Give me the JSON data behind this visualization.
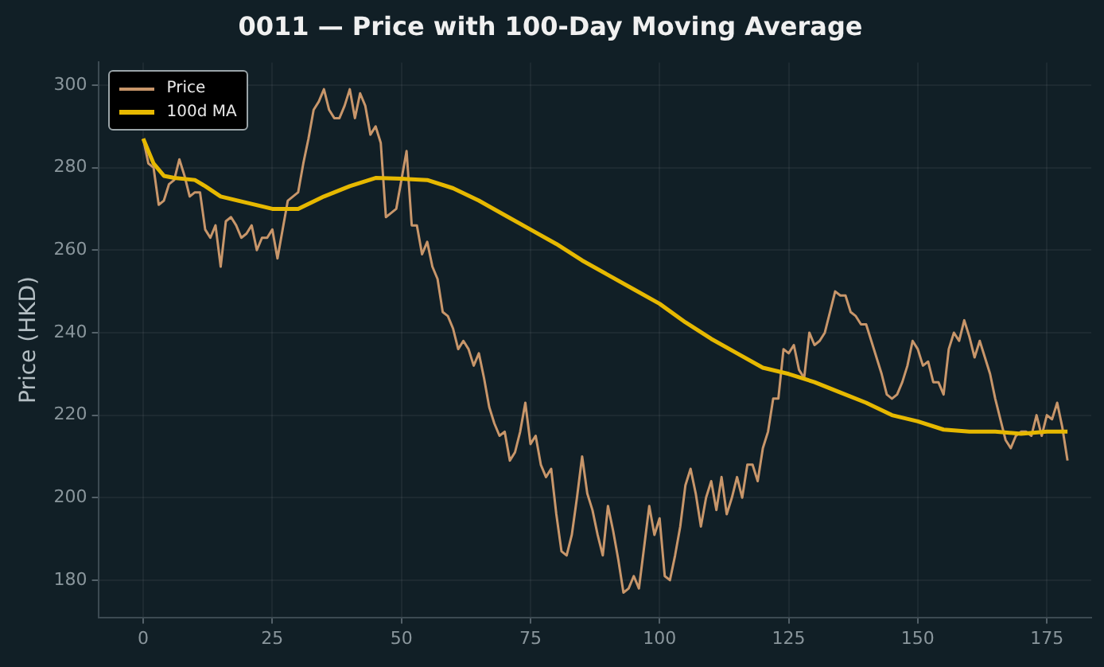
{
  "chart_data": {
    "type": "line",
    "title": "0011 — Price with 100-Day Moving Average",
    "ylabel": "Price (HKD)",
    "xlim": [
      -8.7,
      183.6
    ],
    "xticks": [
      0,
      25,
      50,
      75,
      100,
      125,
      150,
      175
    ],
    "ylim": [
      171,
      305.5
    ],
    "yticks": [
      180,
      200,
      220,
      240,
      260,
      280,
      300
    ],
    "grid": true,
    "legend": "top left",
    "marker": "none",
    "line_style": "solid",
    "series": [
      {
        "name": "Price",
        "color": "#c8966a",
        "x": [
          0,
          1,
          2,
          3,
          4,
          5,
          6,
          7,
          8,
          9,
          10,
          11,
          12,
          13,
          14,
          15,
          16,
          17,
          18,
          19,
          20,
          21,
          22,
          23,
          24,
          25,
          26,
          27,
          28,
          29,
          30,
          31,
          32,
          33,
          34,
          35,
          36,
          37,
          38,
          39,
          40,
          41,
          42,
          43,
          44,
          45,
          46,
          47,
          48,
          49,
          50,
          51,
          52,
          53,
          54,
          55,
          56,
          57,
          58,
          59,
          60,
          61,
          62,
          63,
          64,
          65,
          66,
          67,
          68,
          69,
          70,
          71,
          72,
          73,
          74,
          75,
          76,
          77,
          78,
          79,
          80,
          81,
          82,
          83,
          84,
          85,
          86,
          87,
          88,
          89,
          90,
          91,
          92,
          93,
          94,
          95,
          96,
          97,
          98,
          99,
          100,
          101,
          102,
          103,
          104,
          105,
          106,
          107,
          108,
          109,
          110,
          111,
          112,
          113,
          114,
          115,
          116,
          117,
          118,
          119,
          120,
          121,
          122,
          123,
          124,
          125,
          126,
          127,
          128,
          129,
          130,
          131,
          132,
          133,
          134,
          135,
          136,
          137,
          138,
          139,
          140,
          141,
          142,
          143,
          144,
          145,
          146,
          147,
          148,
          149,
          150,
          151,
          152,
          153,
          154,
          155,
          156,
          157,
          158,
          159,
          160,
          161,
          162,
          163,
          164,
          165,
          166,
          167,
          168,
          169,
          170,
          171,
          172,
          173,
          174,
          175,
          176,
          177,
          178,
          179
        ],
        "values": [
          287,
          281,
          280,
          271,
          272,
          276,
          277,
          282,
          278,
          273,
          274,
          274,
          265,
          263,
          266,
          256,
          267,
          268,
          266,
          263,
          264,
          266,
          260,
          263,
          263,
          265,
          258,
          265,
          272,
          273,
          274,
          281,
          287,
          294,
          296,
          299,
          294,
          292,
          292,
          295,
          299,
          292,
          298,
          295,
          288,
          290,
          286,
          268,
          269,
          270,
          277,
          284,
          266,
          266,
          259,
          262,
          256,
          253,
          245,
          244,
          241,
          236,
          238,
          236,
          232,
          235,
          229,
          222,
          218,
          215,
          216,
          209,
          211,
          216,
          223,
          213,
          215,
          208,
          205,
          207,
          196,
          187,
          186,
          191,
          200,
          210,
          201,
          197,
          191,
          186,
          198,
          192,
          185,
          177,
          178,
          181,
          178,
          188,
          198,
          191,
          195,
          181,
          180,
          186,
          193,
          203,
          207,
          201,
          193,
          200,
          204,
          197,
          205,
          196,
          200,
          205,
          200,
          208,
          208,
          204,
          212,
          216,
          224,
          224,
          236,
          235,
          237,
          231,
          229,
          240,
          237,
          238,
          240,
          245,
          250,
          249,
          249,
          245,
          244,
          242,
          242,
          238,
          234,
          230,
          225,
          224,
          225,
          228,
          232,
          238,
          236,
          232,
          233,
          228,
          228,
          225,
          236,
          240,
          238,
          243,
          239,
          234,
          238,
          234,
          230,
          224,
          219,
          214,
          212,
          215,
          216,
          216,
          215,
          220,
          215,
          220,
          219,
          223,
          217,
          209
        ]
      },
      {
        "name": "100d MA",
        "color": "#e6b800",
        "x": [
          0,
          2,
          4,
          6,
          10,
          12,
          15,
          20,
          25,
          30,
          35,
          40,
          45,
          50,
          55,
          60,
          65,
          70,
          75,
          80,
          85,
          90,
          95,
          100,
          105,
          110,
          115,
          120,
          125,
          130,
          135,
          140,
          145,
          150,
          155,
          160,
          165,
          170,
          175,
          179
        ],
        "values": [
          287,
          281,
          278,
          277.5,
          277,
          275.5,
          273,
          271.5,
          270,
          270,
          273,
          275.5,
          277.5,
          277.3,
          277,
          275,
          272,
          268.5,
          265,
          261.5,
          257.5,
          254,
          250.5,
          247,
          242.5,
          238.5,
          235,
          231.5,
          230,
          228,
          225.5,
          223,
          220,
          218.5,
          216.5,
          216,
          216,
          215.5,
          216,
          216
        ]
      }
    ]
  }
}
